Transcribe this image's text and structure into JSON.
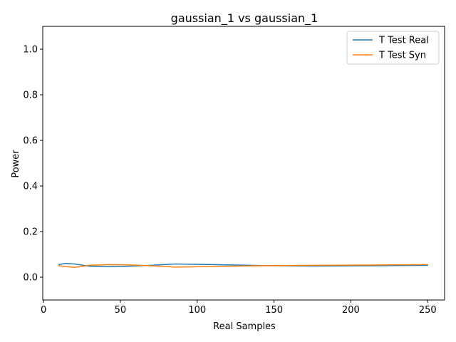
{
  "chart_data": {
    "type": "line",
    "title": "gaussian_1 vs gaussian_1",
    "xlabel": "Real Samples",
    "ylabel": "Power",
    "xlim": [
      -0.5,
      261
    ],
    "ylim": [
      -0.1,
      1.1
    ],
    "xticks": [
      0,
      50,
      100,
      150,
      200,
      250
    ],
    "yticks": [
      0.0,
      0.2,
      0.4,
      0.6,
      0.8,
      1.0
    ],
    "xtick_labels": [
      "0",
      "50",
      "100",
      "150",
      "200",
      "250"
    ],
    "ytick_labels": [
      "0.0",
      "0.2",
      "0.4",
      "0.6",
      "0.8",
      "1.0"
    ],
    "grid": false,
    "legend_position": "top-right",
    "series": [
      {
        "name": "T Test Real",
        "color": "#1f77b4",
        "x": [
          10,
          14,
          20,
          30,
          42,
          55,
          70,
          86,
          110,
          140,
          175,
          210,
          250
        ],
        "y": [
          0.055,
          0.06,
          0.058,
          0.048,
          0.046,
          0.048,
          0.052,
          0.058,
          0.055,
          0.051,
          0.049,
          0.05,
          0.052
        ]
      },
      {
        "name": "T Test Syn",
        "color": "#ff7f0e",
        "x": [
          10,
          14,
          20,
          30,
          42,
          55,
          70,
          86,
          110,
          140,
          175,
          210,
          250
        ],
        "y": [
          0.05,
          0.047,
          0.043,
          0.052,
          0.055,
          0.054,
          0.05,
          0.044,
          0.047,
          0.05,
          0.052,
          0.053,
          0.055
        ]
      }
    ]
  }
}
